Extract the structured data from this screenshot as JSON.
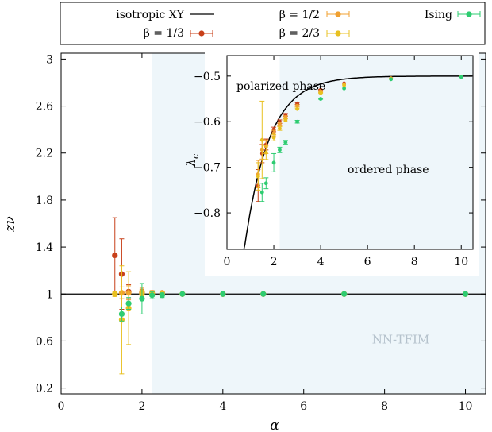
{
  "chart_data": [
    {
      "type": "scatter",
      "xlabel": "α",
      "ylabel": "zν",
      "xlim": [
        0,
        10.5
      ],
      "ylim": [
        0.15,
        3.05
      ],
      "xticks": [
        "0",
        "2",
        "4",
        "6",
        "8",
        "10"
      ],
      "yticks": [
        "0.2",
        "0.6",
        "1",
        "1.4",
        "1.8",
        "2.2",
        "2.6",
        "3"
      ],
      "shaded_region_from_x": 2.25,
      "shaded_region_label": "NN-TFIM",
      "reference_line": {
        "name": "isotropic XY",
        "y": 1
      },
      "legend": {
        "placement": "top",
        "entries": [
          {
            "label": "isotropic XY",
            "kind": "line",
            "color": "#000000"
          },
          {
            "label": "β = 1/2",
            "kind": "point",
            "color": "#f0a030"
          },
          {
            "label": "Ising",
            "kind": "point",
            "color": "#2ecc71"
          },
          {
            "label": "β = 1/3",
            "kind": "point",
            "color": "#c8401a"
          },
          {
            "label": "β = 2/3",
            "kind": "point",
            "color": "#e8c020"
          }
        ]
      },
      "series": [
        {
          "name": "β = 1/3",
          "color": "#c8401a",
          "points": [
            {
              "x": 1.33,
              "y": 1.33,
              "err": 0.32
            },
            {
              "x": 1.5,
              "y": 1.17,
              "err": 0.3
            },
            {
              "x": 1.67,
              "y": 1.02,
              "err": 0.06
            },
            {
              "x": 2.0,
              "y": 1.01,
              "err": 0.03
            },
            {
              "x": 2.25,
              "y": 1.0,
              "err": 0.02
            },
            {
              "x": 2.5,
              "y": 1.0,
              "err": 0.01
            },
            {
              "x": 3,
              "y": 1.0,
              "err": 0
            },
            {
              "x": 4,
              "y": 1.0,
              "err": 0
            },
            {
              "x": 5,
              "y": 1.0,
              "err": 0
            },
            {
              "x": 7,
              "y": 1.0,
              "err": 0
            },
            {
              "x": 10,
              "y": 1.0,
              "err": 0
            }
          ]
        },
        {
          "name": "β = 1/2",
          "color": "#f0a030",
          "points": [
            {
              "x": 1.33,
              "y": 1.0,
              "err": 0.02
            },
            {
              "x": 1.5,
              "y": 1.01,
              "err": 0.05
            },
            {
              "x": 1.67,
              "y": 1.01,
              "err": 0.06
            },
            {
              "x": 2.0,
              "y": 1.02,
              "err": 0.03
            },
            {
              "x": 2.25,
              "y": 1.01,
              "err": 0.02
            },
            {
              "x": 2.5,
              "y": 1.01,
              "err": 0.01
            },
            {
              "x": 3,
              "y": 1.0,
              "err": 0
            },
            {
              "x": 4,
              "y": 1.0,
              "err": 0
            },
            {
              "x": 5,
              "y": 1.0,
              "err": 0
            },
            {
              "x": 7,
              "y": 1.0,
              "err": 0
            },
            {
              "x": 10,
              "y": 1.0,
              "err": 0
            }
          ]
        },
        {
          "name": "β = 2/3",
          "color": "#e8c020",
          "points": [
            {
              "x": 1.33,
              "y": 1.0,
              "err": 0.02
            },
            {
              "x": 1.5,
              "y": 0.78,
              "err": 0.46
            },
            {
              "x": 1.67,
              "y": 0.88,
              "err": 0.31
            },
            {
              "x": 2.0,
              "y": 1.0,
              "err": 0.03
            },
            {
              "x": 2.25,
              "y": 1.0,
              "err": 0.02
            },
            {
              "x": 2.5,
              "y": 1.0,
              "err": 0.01
            },
            {
              "x": 3,
              "y": 1.0,
              "err": 0
            },
            {
              "x": 4,
              "y": 1.0,
              "err": 0
            },
            {
              "x": 5,
              "y": 1.0,
              "err": 0
            },
            {
              "x": 7,
              "y": 1.0,
              "err": 0
            },
            {
              "x": 10,
              "y": 1.0,
              "err": 0
            }
          ]
        },
        {
          "name": "Ising",
          "color": "#2ecc71",
          "points": [
            {
              "x": 1.5,
              "y": 0.83,
              "err": 0.06
            },
            {
              "x": 1.67,
              "y": 0.92,
              "err": 0.05
            },
            {
              "x": 2.0,
              "y": 0.96,
              "err": 0.13
            },
            {
              "x": 2.25,
              "y": 0.99,
              "err": 0.03
            },
            {
              "x": 2.5,
              "y": 0.99,
              "err": 0.02
            },
            {
              "x": 3,
              "y": 1.0,
              "err": 0
            },
            {
              "x": 4,
              "y": 1.0,
              "err": 0
            },
            {
              "x": 5,
              "y": 1.0,
              "err": 0
            },
            {
              "x": 7,
              "y": 1.0,
              "err": 0
            },
            {
              "x": 10,
              "y": 1.0,
              "err": 0
            }
          ]
        }
      ]
    },
    {
      "type": "scatter",
      "ylabel": "λ_c",
      "xlim": [
        0,
        10.5
      ],
      "ylim": [
        -0.88,
        -0.455
      ],
      "xticks": [
        "0",
        "2",
        "4",
        "6",
        "8",
        "10"
      ],
      "yticks": [
        "−0.5",
        "−0.6",
        "−0.7",
        "−0.8"
      ],
      "shaded_region_from_x": 2.25,
      "annotations": [
        "polarized phase",
        "ordered phase"
      ],
      "reference_curve": {
        "name": "isotropic XY",
        "color": "#000000"
      },
      "series": [
        {
          "name": "β = 1/3",
          "color": "#c8401a",
          "points": [
            {
              "x": 1.33,
              "y": -0.74,
              "err": 0.035
            },
            {
              "x": 1.5,
              "y": -0.67,
              "err": 0.02
            },
            {
              "x": 1.67,
              "y": -0.65,
              "err": 0.012
            },
            {
              "x": 2.0,
              "y": -0.617,
              "err": 0.005
            },
            {
              "x": 2.25,
              "y": -0.6,
              "err": 0.004
            },
            {
              "x": 2.5,
              "y": -0.585,
              "err": 0.003
            },
            {
              "x": 3,
              "y": -0.56,
              "err": 0.002
            },
            {
              "x": 4,
              "y": -0.53,
              "err": 0.001
            },
            {
              "x": 5,
              "y": -0.516,
              "err": 0
            },
            {
              "x": 7,
              "y": -0.505,
              "err": 0
            },
            {
              "x": 10,
              "y": -0.501,
              "err": 0
            }
          ]
        },
        {
          "name": "β = 1/2",
          "color": "#f0a030",
          "points": [
            {
              "x": 1.33,
              "y": -0.715,
              "err": 0.03
            },
            {
              "x": 1.5,
              "y": -0.662,
              "err": 0.02
            },
            {
              "x": 1.67,
              "y": -0.655,
              "err": 0.015
            },
            {
              "x": 2.0,
              "y": -0.625,
              "err": 0.006
            },
            {
              "x": 2.25,
              "y": -0.605,
              "err": 0.004
            },
            {
              "x": 2.5,
              "y": -0.59,
              "err": 0.003
            },
            {
              "x": 3,
              "y": -0.565,
              "err": 0.002
            },
            {
              "x": 4,
              "y": -0.533,
              "err": 0.001
            },
            {
              "x": 5,
              "y": -0.518,
              "err": 0
            },
            {
              "x": 7,
              "y": -0.505,
              "err": 0
            },
            {
              "x": 10,
              "y": -0.501,
              "err": 0
            }
          ]
        },
        {
          "name": "β = 2/3",
          "color": "#e8c020",
          "points": [
            {
              "x": 1.33,
              "y": -0.72,
              "err": 0.03
            },
            {
              "x": 1.5,
              "y": -0.64,
              "err": 0.085
            },
            {
              "x": 1.67,
              "y": -0.668,
              "err": 0.015
            },
            {
              "x": 2.0,
              "y": -0.635,
              "err": 0.007
            },
            {
              "x": 2.25,
              "y": -0.615,
              "err": 0.004
            },
            {
              "x": 2.5,
              "y": -0.597,
              "err": 0.003
            },
            {
              "x": 3,
              "y": -0.572,
              "err": 0.002
            },
            {
              "x": 4,
              "y": -0.537,
              "err": 0.001
            },
            {
              "x": 5,
              "y": -0.52,
              "err": 0
            },
            {
              "x": 7,
              "y": -0.506,
              "err": 0
            },
            {
              "x": 10,
              "y": -0.501,
              "err": 0
            }
          ]
        },
        {
          "name": "Ising",
          "color": "#2ecc71",
          "points": [
            {
              "x": 1.5,
              "y": -0.755,
              "err": 0.02
            },
            {
              "x": 1.67,
              "y": -0.735,
              "err": 0.012
            },
            {
              "x": 2.0,
              "y": -0.69,
              "err": 0.02
            },
            {
              "x": 2.25,
              "y": -0.662,
              "err": 0.006
            },
            {
              "x": 2.5,
              "y": -0.645,
              "err": 0.004
            },
            {
              "x": 3,
              "y": -0.6,
              "err": 0.003
            },
            {
              "x": 4,
              "y": -0.55,
              "err": 0.001
            },
            {
              "x": 5,
              "y": -0.527,
              "err": 0
            },
            {
              "x": 7,
              "y": -0.507,
              "err": 0
            },
            {
              "x": 10,
              "y": -0.502,
              "err": 0
            }
          ]
        }
      ]
    }
  ]
}
